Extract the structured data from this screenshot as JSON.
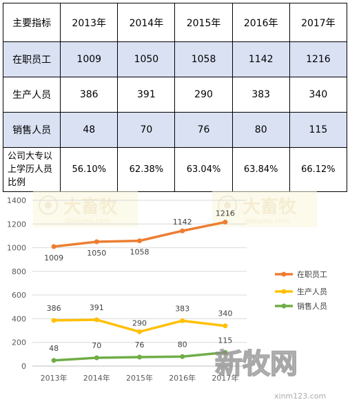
{
  "table": {
    "header": [
      "主要指标",
      "2013年",
      "2014年",
      "2015年",
      "2016年",
      "2017年"
    ],
    "rows": [
      {
        "label": "在职员工",
        "cells": [
          "1009",
          "1050",
          "1058",
          "1142",
          "1216"
        ]
      },
      {
        "label": "生产人员",
        "cells": [
          "386",
          "391",
          "290",
          "383",
          "340"
        ]
      },
      {
        "label": "销售人员",
        "cells": [
          "48",
          "70",
          "76",
          "80",
          "115"
        ]
      },
      {
        "label_lines": [
          "公司大专以",
          "上学历人员",
          "比例"
        ],
        "cells": [
          "56.10%",
          "62.38%",
          "63.04%",
          "63.84%",
          "66.12%"
        ]
      }
    ]
  },
  "chart_data": {
    "type": "line",
    "categories": [
      "2013年",
      "2014年",
      "2015年",
      "2016年",
      "2017年"
    ],
    "ylim": [
      0,
      1400
    ],
    "yticks": [
      "0",
      "200",
      "400",
      "600",
      "800",
      "1000",
      "1200",
      "1400"
    ],
    "grid": true,
    "legend_position": "right",
    "series": [
      {
        "name": "在职员工",
        "color": "#ed7d31",
        "values": [
          1009,
          1050,
          1058,
          1142,
          1216
        ],
        "labels": [
          "1009",
          "1050",
          "1058",
          "1142",
          "1216"
        ]
      },
      {
        "name": "生产人员",
        "color": "#ffc000",
        "values": [
          386,
          391,
          290,
          383,
          340
        ],
        "labels": [
          "386",
          "391",
          "290",
          "383",
          "340"
        ]
      },
      {
        "name": "销售人员",
        "color": "#70ad47",
        "values": [
          48,
          70,
          76,
          80,
          115
        ],
        "labels": [
          "48",
          "70",
          "76",
          "80",
          "115"
        ]
      }
    ]
  },
  "watermarks": [
    "大畜牧",
    "daxumu.com",
    "新牧网",
    "xinm123.com"
  ]
}
